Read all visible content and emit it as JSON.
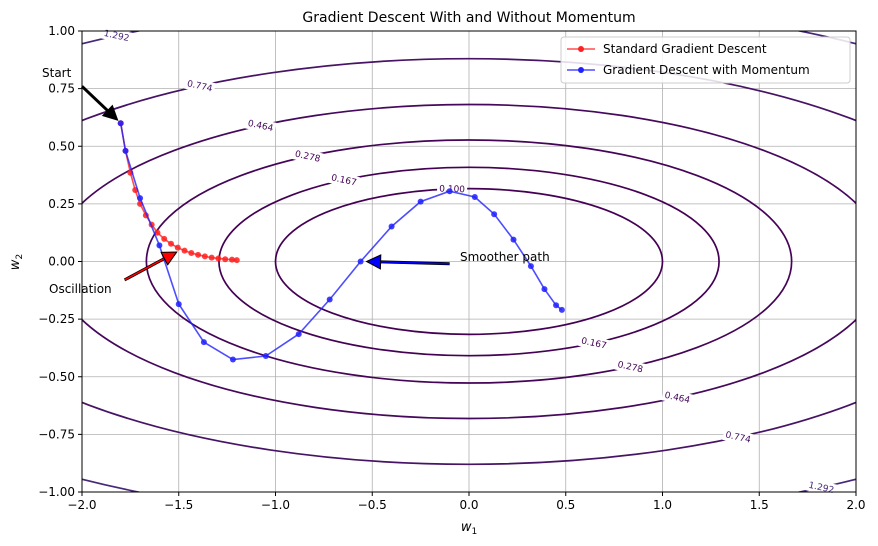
{
  "chart_data": {
    "type": "line",
    "title": "Gradient Descent With and Without Momentum",
    "xlabel": "w",
    "xlabel_sub": "1",
    "ylabel": "w",
    "ylabel_sub": "2",
    "xlim": [
      -2.0,
      2.0
    ],
    "ylim": [
      -1.0,
      1.0
    ],
    "grid": true,
    "legend_position": "top-right",
    "x_ticks": [
      "−2.0",
      "−1.5",
      "−1.0",
      "−0.5",
      "0.0",
      "0.5",
      "1.0",
      "1.5",
      "2.0"
    ],
    "y_ticks": [
      "−1.00",
      "−0.75",
      "−0.50",
      "−0.25",
      "0.00",
      "0.25",
      "0.50",
      "0.75",
      "1.00"
    ],
    "contours": [
      {
        "level": 0.1,
        "label": "0.100",
        "color": "#440154"
      },
      {
        "level": 0.167,
        "label": "0.167",
        "color": "#440154"
      },
      {
        "level": 0.278,
        "label": "0.278",
        "color": "#450457"
      },
      {
        "level": 0.464,
        "label": "0.464",
        "color": "#46085c"
      },
      {
        "level": 0.774,
        "label": "0.774",
        "color": "#471365"
      },
      {
        "level": 1.292,
        "label": "1.292",
        "color": "#482878"
      }
    ],
    "series": [
      {
        "name": "Standard Gradient Descent",
        "color": "#ff2020",
        "points": [
          [
            -1.8,
            0.6
          ],
          [
            -1.775,
            0.48
          ],
          [
            -1.75,
            0.385
          ],
          [
            -1.725,
            0.31
          ],
          [
            -1.7,
            0.25
          ],
          [
            -1.67,
            0.2
          ],
          [
            -1.64,
            0.16
          ],
          [
            -1.61,
            0.125
          ],
          [
            -1.575,
            0.098
          ],
          [
            -1.54,
            0.077
          ],
          [
            -1.505,
            0.06
          ],
          [
            -1.47,
            0.047
          ],
          [
            -1.435,
            0.037
          ],
          [
            -1.4,
            0.029
          ],
          [
            -1.365,
            0.022
          ],
          [
            -1.33,
            0.017
          ],
          [
            -1.295,
            0.013
          ],
          [
            -1.26,
            0.01
          ],
          [
            -1.225,
            0.008
          ],
          [
            -1.2,
            0.006
          ]
        ]
      },
      {
        "name": "Gradient Descent with Momentum",
        "color": "#2020ff",
        "points": [
          [
            -1.8,
            0.6
          ],
          [
            -1.775,
            0.48
          ],
          [
            -1.7,
            0.275
          ],
          [
            -1.6,
            0.07
          ],
          [
            -1.5,
            -0.185
          ],
          [
            -1.37,
            -0.35
          ],
          [
            -1.22,
            -0.425
          ],
          [
            -1.05,
            -0.41
          ],
          [
            -0.88,
            -0.315
          ],
          [
            -0.72,
            -0.165
          ],
          [
            -0.56,
            0.0
          ],
          [
            -0.4,
            0.152
          ],
          [
            -0.25,
            0.26
          ],
          [
            -0.1,
            0.305
          ],
          [
            0.03,
            0.28
          ],
          [
            0.13,
            0.205
          ],
          [
            0.23,
            0.095
          ],
          [
            0.32,
            -0.02
          ],
          [
            0.39,
            -0.12
          ],
          [
            0.45,
            -0.19
          ],
          [
            0.48,
            -0.21
          ]
        ]
      }
    ],
    "annotations": [
      {
        "text": "Start",
        "point": [
          -1.8,
          0.6
        ],
        "color": "#000000"
      },
      {
        "text": "Oscillation",
        "point": [
          -1.5,
          0.05
        ],
        "color": "#ff0000"
      },
      {
        "text": "Smoother path",
        "point": [
          -0.55,
          0.0
        ],
        "color": "#0000ff"
      }
    ]
  }
}
